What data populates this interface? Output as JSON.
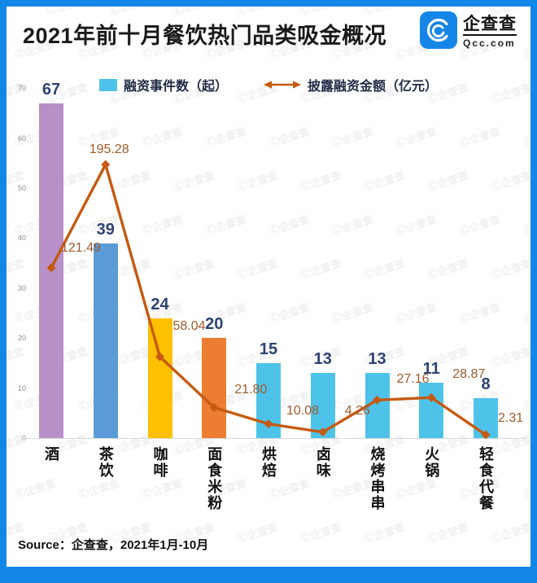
{
  "header": {
    "title": "2021年前十月餐饮热门品类吸金概况",
    "logo": {
      "name": "企查查",
      "domain": "Qcc.com"
    }
  },
  "footer": {
    "source": "Source：企查查，2021年1月-10月"
  },
  "watermark": "Ⓒ企查查",
  "colors": {
    "frame_border": "#1287e8",
    "bar_default": "#4ec3ea",
    "bar_palette": [
      "#b890c8",
      "#5b9bd5",
      "#ffc000",
      "#ed7d31",
      "#4ec3ea",
      "#4ec3ea",
      "#4ec3ea",
      "#4ec3ea",
      "#4ec3ea"
    ],
    "line": "#c55a11",
    "bar_value_label": "#2e4372",
    "line_value_label": "#9e5b2b",
    "axis_tick": "#8c8c8c"
  },
  "chart_data": {
    "type": "bar",
    "title": "2021年前十月餐饮热门品类吸金概况",
    "categories": [
      "酒",
      "茶饮",
      "咖啡",
      "面食米粉",
      "烘焙",
      "卤味",
      "烧烤串串",
      "火锅",
      "轻食代餐"
    ],
    "series": [
      {
        "name": "融资事件数（起）",
        "type": "bar",
        "values": [
          67,
          39,
          24,
          20,
          15,
          13,
          13,
          11,
          8
        ],
        "labels": [
          "67",
          "39",
          "24",
          "20",
          "15",
          "13",
          "13",
          "11",
          "8"
        ]
      },
      {
        "name": "披露融资金额（亿元）",
        "type": "line",
        "values": [
          121.49,
          195.28,
          58.04,
          21.8,
          10.08,
          4.26,
          27.16,
          28.87,
          2.31
        ],
        "labels": [
          "121.49",
          "195.28",
          "58.04",
          "21.80",
          "10.08",
          "4.26",
          "27.16",
          "28.87",
          "2.31"
        ]
      }
    ],
    "ylim_left": [
      0,
      70
    ],
    "yticks_left": [
      0,
      10,
      20,
      30,
      40,
      50,
      60,
      70
    ],
    "ylim_right": [
      0,
      250
    ],
    "grid": false,
    "legend_position": "top",
    "xlabel": "",
    "ylabel": ""
  }
}
